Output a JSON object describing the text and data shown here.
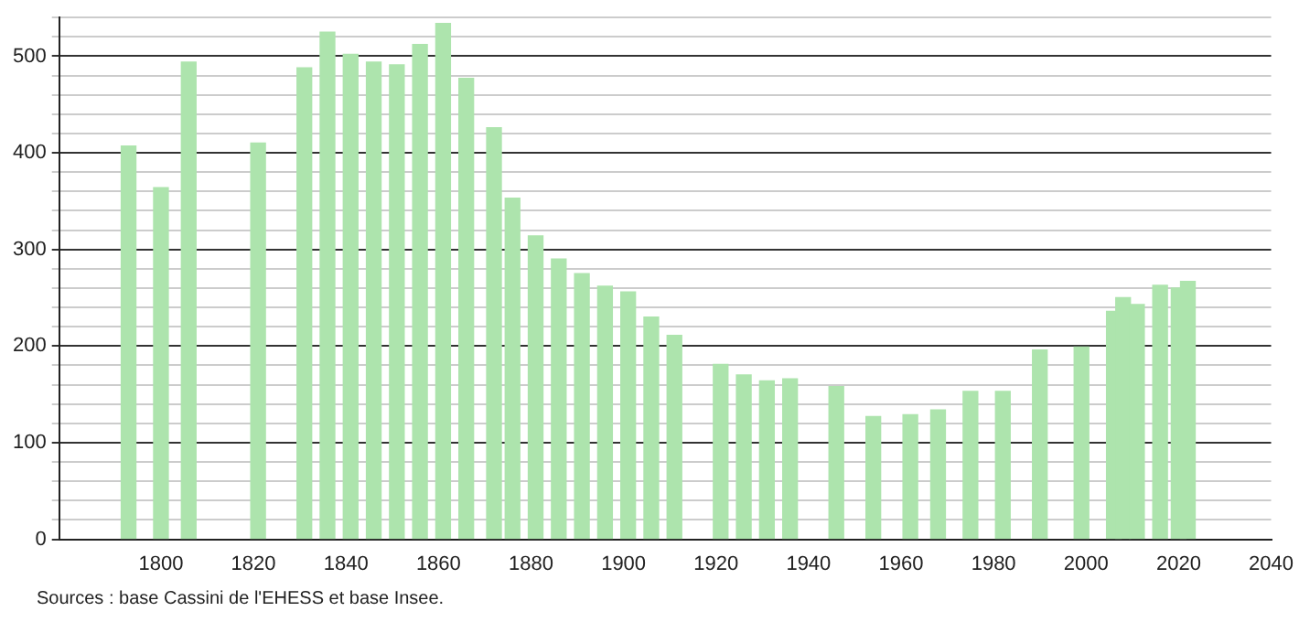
{
  "chart_data": {
    "type": "bar",
    "x": [
      1793,
      1800,
      1806,
      1821,
      1831,
      1836,
      1841,
      1846,
      1851,
      1856,
      1861,
      1866,
      1872,
      1876,
      1881,
      1886,
      1891,
      1896,
      1901,
      1906,
      1911,
      1921,
      1926,
      1931,
      1936,
      1946,
      1954,
      1962,
      1968,
      1975,
      1982,
      1990,
      1999,
      2006,
      2008,
      2011,
      2016,
      2020,
      2022
    ],
    "values": [
      407,
      364,
      494,
      410,
      488,
      525,
      502,
      494,
      491,
      512,
      534,
      477,
      426,
      353,
      314,
      290,
      275,
      262,
      256,
      230,
      211,
      181,
      170,
      164,
      166,
      158,
      127,
      129,
      134,
      153,
      153,
      196,
      199,
      236,
      250,
      243,
      263,
      260,
      267
    ],
    "color": "#ade4ad",
    "xlim": [
      1778,
      2040
    ],
    "xticks": [
      1800,
      1820,
      1840,
      1860,
      1880,
      1900,
      1920,
      1940,
      1960,
      1980,
      2000,
      2020,
      2040
    ],
    "ylim": [
      0,
      540
    ],
    "yticks": [
      0,
      {
        "value": 20,
        "label": null
      },
      {
        "value": 40,
        "label": null
      },
      {
        "value": 60,
        "label": null
      },
      {
        "value": 80,
        "label": null
      },
      100,
      {
        "value": 120,
        "label": null
      },
      {
        "value": 140,
        "label": null
      },
      {
        "value": 160,
        "label": null
      },
      {
        "value": 180,
        "label": null
      },
      200,
      {
        "value": 220,
        "label": null
      },
      {
        "value": 240,
        "label": null
      },
      {
        "value": 260,
        "label": null
      },
      {
        "value": 280,
        "label": null
      },
      300,
      {
        "value": 320,
        "label": null
      },
      {
        "value": 340,
        "label": null
      },
      {
        "value": 360,
        "label": null
      },
      {
        "value": 380,
        "label": null
      },
      400,
      {
        "value": 420,
        "label": null
      },
      {
        "value": 440,
        "label": null
      },
      {
        "value": 460,
        "label": null
      },
      {
        "value": 480,
        "label": null
      },
      500,
      {
        "value": 520,
        "label": null
      },
      {
        "value": 540,
        "label": null
      }
    ],
    "grid": "y",
    "legend": false,
    "annotations": [
      "Sources : base Cassini de l'EHESS et base Insee."
    ]
  }
}
